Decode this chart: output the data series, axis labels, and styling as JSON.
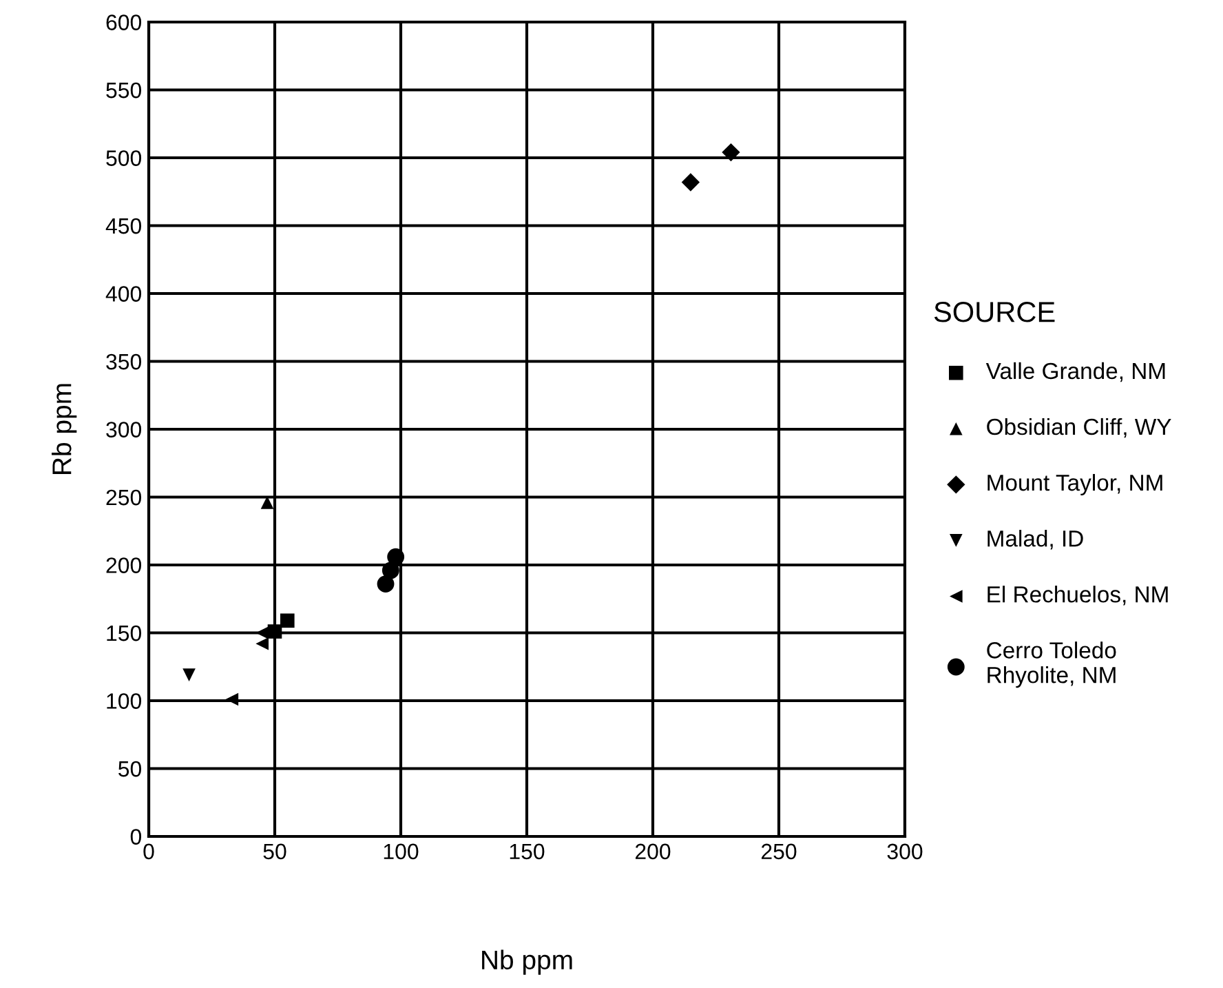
{
  "chart_data": {
    "type": "scatter",
    "xlabel": "Nb ppm",
    "ylabel": "Rb ppm",
    "legend_title": "SOURCE",
    "legend": "right",
    "xlim": [
      0,
      300
    ],
    "xticks": [
      0,
      50,
      100,
      150,
      200,
      250,
      300
    ],
    "ylim": [
      0,
      600
    ],
    "yticks": [
      0,
      50,
      100,
      150,
      200,
      250,
      300,
      350,
      400,
      450,
      500,
      550,
      600
    ],
    "grid": true,
    "series": [
      {
        "name": "Valle Grande, NM",
        "color": "#000000",
        "marker": "square",
        "x": [
          50,
          55
        ],
        "values": [
          151,
          159
        ]
      },
      {
        "name": "Obsidian Cliff, WY",
        "color": "#000000",
        "marker": "triangle",
        "x": [
          47
        ],
        "values": [
          246
        ]
      },
      {
        "name": "Mount Taylor, NM",
        "color": "#000000",
        "marker": "diamond",
        "x": [
          215,
          231
        ],
        "values": [
          482,
          504
        ]
      },
      {
        "name": "Malad, ID",
        "color": "#000000",
        "marker": "triangle_down",
        "x": [
          16
        ],
        "values": [
          119
        ]
      },
      {
        "name": "El Rechuelos, NM",
        "color": "#000000",
        "marker": "triangle_left",
        "x": [
          33,
          45,
          45
        ],
        "values": [
          101,
          150,
          142
        ]
      },
      {
        "name": "Cerro Toledo\nRhyolite, NM",
        "color": "#000000",
        "marker": "circle",
        "x": [
          94,
          96,
          98
        ],
        "values": [
          186,
          196,
          206
        ]
      }
    ]
  }
}
